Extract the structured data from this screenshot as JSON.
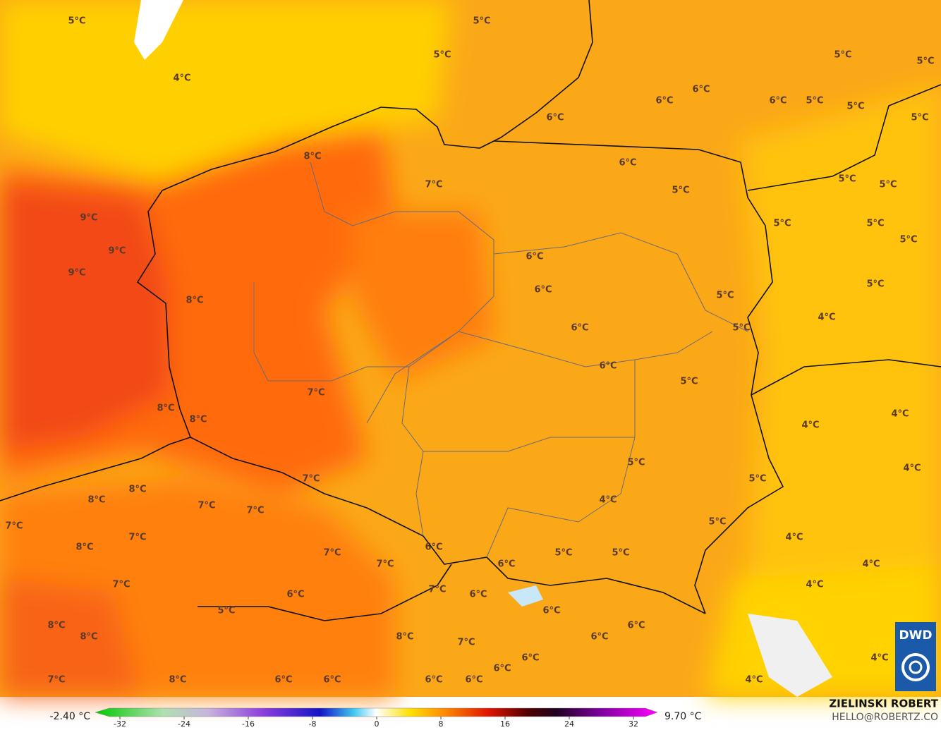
{
  "map": {
    "temperature_labels": [
      "5°C",
      "5°C",
      "5°C",
      "4°C",
      "5°C",
      "5°C",
      "6°C",
      "6°C",
      "6°C",
      "5°C",
      "5°C",
      "5°C",
      "6°C",
      "8°C",
      "6°C",
      "7°C",
      "5°C",
      "5°C",
      "5°C",
      "9°C",
      "9°C",
      "9°C",
      "5°C",
      "5°C",
      "5°C",
      "6°C",
      "6°C",
      "5°C",
      "8°C",
      "5°C",
      "4°C",
      "6°C",
      "5°C",
      "6°C",
      "5°C",
      "7°C",
      "8°C",
      "8°C",
      "4°C",
      "4°C",
      "5°C",
      "4°C",
      "7°C",
      "5°C",
      "8°C",
      "8°C",
      "4°C",
      "7°C",
      "7°C",
      "7°C",
      "5°C",
      "7°C",
      "4°C",
      "8°C",
      "6°C",
      "7°C",
      "5°C",
      "5°C",
      "7°C",
      "6°C",
      "4°C",
      "7°C",
      "7°C",
      "6°C",
      "6°C",
      "4°C",
      "5°C",
      "6°C",
      "8°C",
      "6°C",
      "8°C",
      "8°C",
      "6°C",
      "7°C",
      "6°C",
      "4°C",
      "6°C",
      "7°C",
      "8°C",
      "6°C",
      "6°C",
      "6°C",
      "6°C",
      "4°C"
    ],
    "legend": {
      "min_label": "-2.40 °C",
      "max_label": "9.70 °C",
      "ticks": [
        -32,
        -24,
        -16,
        -8,
        0,
        8,
        16,
        24,
        32
      ]
    },
    "credit": {
      "author": "ZIELINSKI ROBERT",
      "contact": "HELLO@ROBERTZ.CO",
      "logo": "DWD"
    }
  }
}
